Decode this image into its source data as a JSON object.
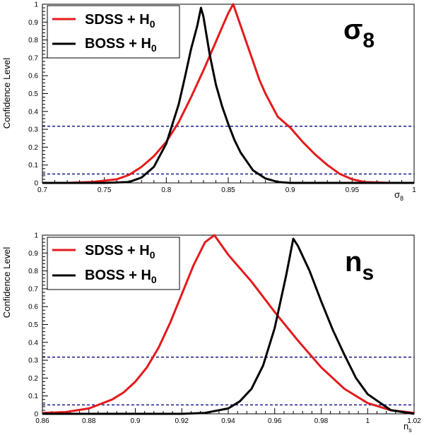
{
  "chart_data": [
    {
      "type": "line",
      "param_label": "σ",
      "param_sub": "8",
      "ylabel": "Confidence Level",
      "xlabel": "σ",
      "xlabel_sub": "8",
      "xlim": [
        0.7,
        1.0
      ],
      "ylim": [
        0,
        1
      ],
      "xticks": [
        "0.7",
        "0.75",
        "0.8",
        "0.85",
        "0.9",
        "0.95",
        "1"
      ],
      "yticks": [
        "0",
        "0.1",
        "0.2",
        "0.3",
        "0.4",
        "0.5",
        "0.6",
        "0.7",
        "0.8",
        "0.9",
        "1"
      ],
      "hlines": [
        0.317,
        0.05
      ],
      "legend_position": "top-left",
      "series": [
        {
          "name": "SDSS + H",
          "name_sub": "0",
          "color": "#e41a1c",
          "x": [
            0.7,
            0.72,
            0.74,
            0.76,
            0.77,
            0.78,
            0.79,
            0.8,
            0.81,
            0.82,
            0.83,
            0.84,
            0.845,
            0.85,
            0.854,
            0.86,
            0.865,
            0.87,
            0.875,
            0.88,
            0.89,
            0.9,
            0.91,
            0.92,
            0.93,
            0.94,
            0.95,
            0.96,
            0.98,
            1.0
          ],
          "y": [
            0.0,
            0.0,
            0.005,
            0.02,
            0.045,
            0.09,
            0.15,
            0.23,
            0.34,
            0.48,
            0.63,
            0.79,
            0.87,
            0.95,
            1.0,
            0.88,
            0.78,
            0.68,
            0.58,
            0.5,
            0.37,
            0.31,
            0.23,
            0.16,
            0.1,
            0.05,
            0.02,
            0.005,
            0.0,
            0.0
          ]
        },
        {
          "name": "BOSS + H",
          "name_sub": "0",
          "color": "#000000",
          "x": [
            0.7,
            0.75,
            0.77,
            0.78,
            0.79,
            0.8,
            0.81,
            0.815,
            0.82,
            0.825,
            0.828,
            0.83,
            0.835,
            0.84,
            0.845,
            0.85,
            0.855,
            0.86,
            0.87,
            0.88,
            0.89,
            0.9,
            0.95,
            1.0
          ],
          "y": [
            0.0,
            0.0,
            0.005,
            0.03,
            0.09,
            0.22,
            0.44,
            0.59,
            0.75,
            0.88,
            0.98,
            0.93,
            0.72,
            0.55,
            0.43,
            0.33,
            0.24,
            0.17,
            0.07,
            0.025,
            0.005,
            0.0,
            0.0,
            0.0
          ]
        }
      ]
    },
    {
      "type": "line",
      "param_label": "n",
      "param_sub": "s",
      "ylabel": "Confidence Level",
      "xlabel": "n",
      "xlabel_sub": "s",
      "xlim": [
        0.86,
        1.02
      ],
      "ylim": [
        0,
        1
      ],
      "xticks": [
        "0.86",
        "0.88",
        "0.9",
        "0.92",
        "0.94",
        "0.96",
        "0.98",
        "1",
        "1.02"
      ],
      "yticks": [
        "0",
        "0.1",
        "0.2",
        "0.3",
        "0.4",
        "0.5",
        "0.6",
        "0.7",
        "0.8",
        "0.9",
        "1"
      ],
      "hlines": [
        0.317,
        0.05
      ],
      "legend_position": "top-left",
      "series": [
        {
          "name": "SDSS + H",
          "name_sub": "0",
          "color": "#e41a1c",
          "x": [
            0.86,
            0.87,
            0.88,
            0.89,
            0.895,
            0.9,
            0.905,
            0.91,
            0.915,
            0.92,
            0.925,
            0.93,
            0.934,
            0.94,
            0.95,
            0.96,
            0.97,
            0.98,
            0.99,
            1.0,
            1.01,
            1.02
          ],
          "y": [
            0.005,
            0.01,
            0.03,
            0.08,
            0.12,
            0.18,
            0.26,
            0.37,
            0.51,
            0.67,
            0.83,
            0.96,
            1.0,
            0.89,
            0.74,
            0.57,
            0.41,
            0.26,
            0.14,
            0.06,
            0.02,
            0.005
          ]
        },
        {
          "name": "BOSS + H",
          "name_sub": "0",
          "color": "#000000",
          "x": [
            0.86,
            0.92,
            0.93,
            0.94,
            0.945,
            0.95,
            0.955,
            0.96,
            0.965,
            0.968,
            0.97,
            0.975,
            0.98,
            0.985,
            0.99,
            0.995,
            1.0,
            1.01,
            1.02
          ],
          "y": [
            0.0,
            0.0,
            0.005,
            0.03,
            0.07,
            0.14,
            0.27,
            0.48,
            0.78,
            0.98,
            0.94,
            0.8,
            0.63,
            0.47,
            0.33,
            0.2,
            0.11,
            0.02,
            0.0
          ]
        }
      ]
    }
  ]
}
